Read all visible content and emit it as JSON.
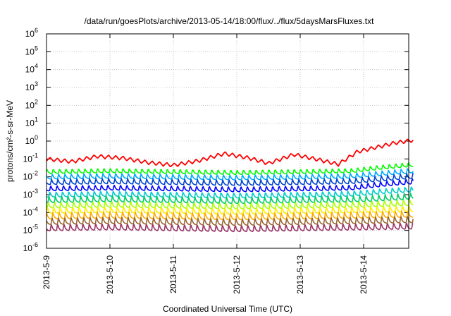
{
  "chart_data": {
    "type": "line",
    "title": "/data/run/goesPlots/archive/2013-05-14/18:00/flux/../flux/5daysMarsFluxes.txt",
    "xlabel": "Coordinated Universal Time (UTC)",
    "ylabel": "protons/cm²-s-sr-MeV",
    "x_ticks": [
      "2013-5-9",
      "2013-5-10",
      "2013-5-11",
      "2013-5-12",
      "2013-5-13",
      "2013-5-14"
    ],
    "x_range_days": [
      0,
      5.78
    ],
    "y_scale": "log",
    "y_ticks": [
      {
        "base": "10",
        "exp": "-6"
      },
      {
        "base": "10",
        "exp": "-5"
      },
      {
        "base": "10",
        "exp": "-4"
      },
      {
        "base": "10",
        "exp": "-3"
      },
      {
        "base": "10",
        "exp": "-2"
      },
      {
        "base": "10",
        "exp": "-1"
      },
      {
        "base": "10",
        "exp": "0"
      },
      {
        "base": "10",
        "exp": "1"
      },
      {
        "base": "10",
        "exp": "2"
      },
      {
        "base": "10",
        "exp": "3"
      },
      {
        "base": "10",
        "exp": "4"
      },
      {
        "base": "10",
        "exp": "5"
      },
      {
        "base": "10",
        "exp": "6"
      }
    ],
    "ylim": [
      1e-06,
      1000000.0
    ],
    "grid": true,
    "series": [
      {
        "color": "#ff0000",
        "values_day_exp": [
          [
            0,
            -1.0
          ],
          [
            0.4,
            -1.15
          ],
          [
            0.8,
            -0.85
          ],
          [
            1.2,
            -0.95
          ],
          [
            1.6,
            -1.2
          ],
          [
            2.0,
            -1.35
          ],
          [
            2.4,
            -1.1
          ],
          [
            2.8,
            -0.7
          ],
          [
            3.2,
            -0.95
          ],
          [
            3.5,
            -1.25
          ],
          [
            3.9,
            -0.75
          ],
          [
            4.3,
            -1.05
          ],
          [
            4.6,
            -1.3
          ],
          [
            4.9,
            -0.6
          ],
          [
            5.2,
            -0.35
          ],
          [
            5.5,
            -0.1
          ],
          [
            5.78,
            0.05
          ]
        ]
      },
      {
        "color": "#00ff00",
        "values_day_exp": [
          [
            0,
            -1.7
          ],
          [
            1.0,
            -1.65
          ],
          [
            2.0,
            -1.7
          ],
          [
            3.0,
            -1.75
          ],
          [
            4.0,
            -1.7
          ],
          [
            4.8,
            -1.65
          ],
          [
            5.3,
            -1.45
          ],
          [
            5.78,
            -1.3
          ]
        ]
      },
      {
        "color": "#00aaff",
        "values_day_exp": [
          [
            0,
            -2.0
          ],
          [
            1.0,
            -1.95
          ],
          [
            2.0,
            -2.0
          ],
          [
            3.0,
            -2.05
          ],
          [
            4.0,
            -2.0
          ],
          [
            4.8,
            -1.95
          ],
          [
            5.3,
            -1.8
          ],
          [
            5.78,
            -1.65
          ]
        ]
      },
      {
        "color": "#0044cc",
        "values_day_exp": [
          [
            0,
            -2.3
          ],
          [
            1.0,
            -2.25
          ],
          [
            2.0,
            -2.3
          ],
          [
            3.0,
            -2.35
          ],
          [
            4.0,
            -2.3
          ],
          [
            4.8,
            -2.25
          ],
          [
            5.3,
            -2.1
          ],
          [
            5.78,
            -1.95
          ]
        ]
      },
      {
        "color": "#0000ff",
        "values_day_exp": [
          [
            0,
            -2.65
          ],
          [
            1.0,
            -2.6
          ],
          [
            2.0,
            -2.65
          ],
          [
            3.0,
            -2.7
          ],
          [
            4.0,
            -2.65
          ],
          [
            4.8,
            -2.6
          ],
          [
            5.3,
            -2.4
          ],
          [
            5.78,
            -2.25
          ]
        ]
      },
      {
        "color": "#00cccc",
        "values_day_exp": [
          [
            0,
            -3.0
          ],
          [
            1.0,
            -2.95
          ],
          [
            2.0,
            -3.0
          ],
          [
            3.0,
            -3.05
          ],
          [
            4.0,
            -3.0
          ],
          [
            4.8,
            -2.95
          ],
          [
            5.3,
            -2.8
          ],
          [
            5.78,
            -2.7
          ]
        ]
      },
      {
        "color": "#00cc66",
        "values_day_exp": [
          [
            0,
            -3.3
          ],
          [
            1.0,
            -3.25
          ],
          [
            2.0,
            -3.3
          ],
          [
            3.0,
            -3.35
          ],
          [
            4.0,
            -3.3
          ],
          [
            5.0,
            -3.25
          ],
          [
            5.78,
            -3.1
          ]
        ]
      },
      {
        "color": "#aaff00",
        "values_day_exp": [
          [
            0,
            -3.6
          ],
          [
            1.0,
            -3.55
          ],
          [
            2.0,
            -3.6
          ],
          [
            3.0,
            -3.65
          ],
          [
            4.0,
            -3.6
          ],
          [
            5.0,
            -3.55
          ],
          [
            5.78,
            -3.45
          ]
        ]
      },
      {
        "color": "#ffee00",
        "values_day_exp": [
          [
            0,
            -3.9
          ],
          [
            1.0,
            -3.85
          ],
          [
            2.0,
            -3.9
          ],
          [
            3.0,
            -3.95
          ],
          [
            4.0,
            -3.9
          ],
          [
            5.0,
            -3.85
          ],
          [
            5.78,
            -3.8
          ]
        ]
      },
      {
        "color": "#ffaa00",
        "values_day_exp": [
          [
            0,
            -4.2
          ],
          [
            1.0,
            -4.15
          ],
          [
            2.0,
            -4.2
          ],
          [
            3.0,
            -4.25
          ],
          [
            4.0,
            -4.2
          ],
          [
            5.0,
            -4.15
          ],
          [
            5.78,
            -4.1
          ]
        ]
      },
      {
        "color": "#996633",
        "values_day_exp": [
          [
            0,
            -4.5
          ],
          [
            1.0,
            -4.45
          ],
          [
            2.0,
            -4.5
          ],
          [
            3.0,
            -4.55
          ],
          [
            4.0,
            -4.5
          ],
          [
            5.0,
            -4.45
          ],
          [
            5.78,
            -4.4
          ]
        ]
      },
      {
        "color": "#993366",
        "values_day_exp": [
          [
            0,
            -4.85
          ],
          [
            1.0,
            -4.8
          ],
          [
            2.0,
            -4.85
          ],
          [
            3.0,
            -4.9
          ],
          [
            4.0,
            -4.85
          ],
          [
            5.0,
            -4.8
          ],
          [
            5.78,
            -4.75
          ]
        ]
      }
    ]
  }
}
